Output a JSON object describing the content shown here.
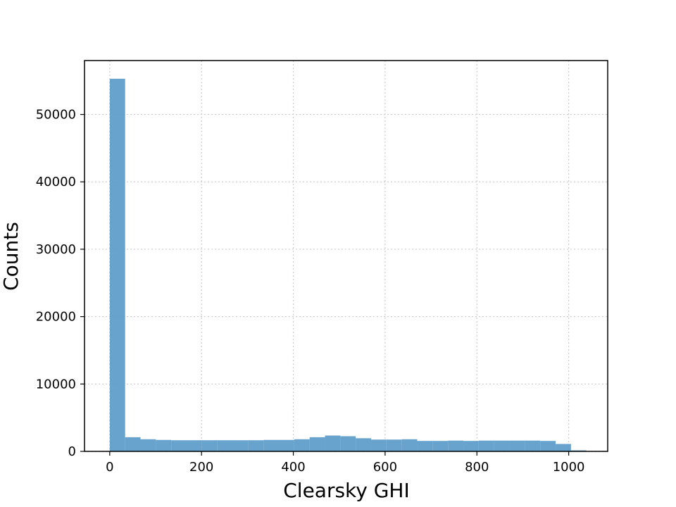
{
  "chart_data": {
    "type": "bar",
    "title": "",
    "xlabel": "Clearsky GHI",
    "ylabel": "Counts",
    "xlim": [
      -55,
      1085
    ],
    "ylim": [
      0,
      58000
    ],
    "xticks": [
      0,
      200,
      400,
      600,
      800,
      1000
    ],
    "xtick_labels": [
      "0",
      "200",
      "400",
      "600",
      "800",
      "1000"
    ],
    "yticks": [
      0,
      10000,
      20000,
      30000,
      40000,
      50000
    ],
    "ytick_labels": [
      "0",
      "10000",
      "20000",
      "30000",
      "40000",
      "50000"
    ],
    "grid": true,
    "bin_edges": [
      0,
      33.5,
      67,
      100.5,
      134,
      167.5,
      201,
      234.5,
      268,
      301.5,
      335,
      368.5,
      402,
      435.5,
      469,
      502.5,
      536,
      569.5,
      603,
      636.5,
      670,
      703.5,
      737,
      770.5,
      804,
      837.5,
      871,
      904.5,
      938,
      971.5,
      1005,
      1038.5
    ],
    "values": [
      55300,
      2100,
      1800,
      1700,
      1650,
      1650,
      1650,
      1650,
      1650,
      1650,
      1700,
      1700,
      1800,
      2100,
      2350,
      2250,
      1950,
      1750,
      1750,
      1800,
      1550,
      1550,
      1600,
      1550,
      1600,
      1600,
      1600,
      1600,
      1550,
      1100,
      150
    ],
    "color": "#5b9bc9"
  }
}
